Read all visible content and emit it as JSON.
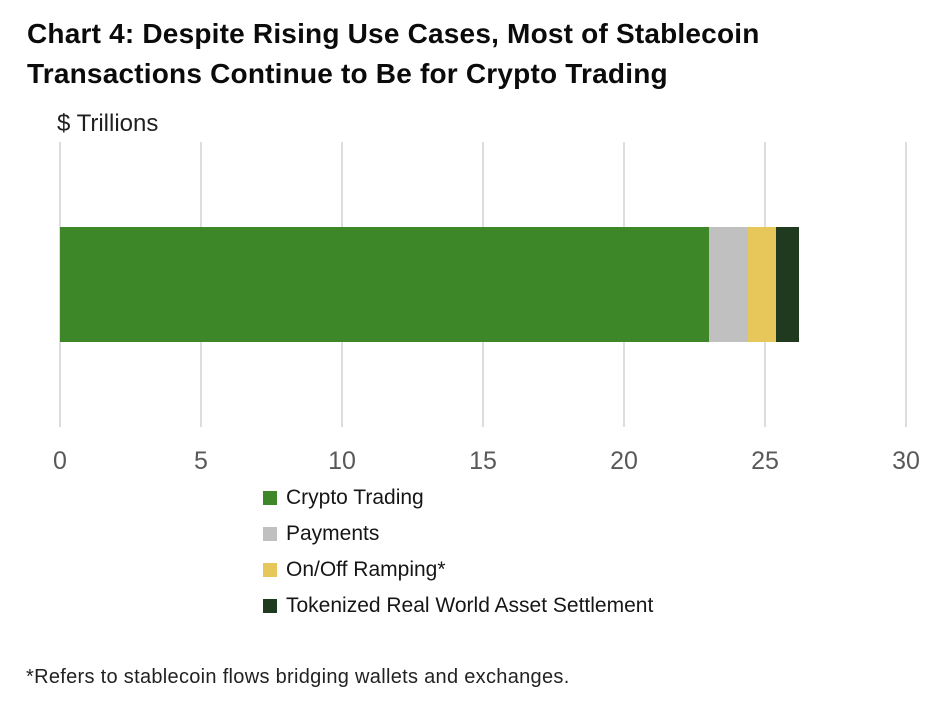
{
  "title": "Chart 4: Despite Rising Use Cases, Most of Stablecoin Transactions Continue to Be for Crypto Trading",
  "footnote": "*Refers to stablecoin flows bridging wallets and exchanges.",
  "colors": {
    "background": "#ffffff",
    "title_text": "#0b0b0b",
    "tick_text": "#595959",
    "gridline": "#dddddd"
  },
  "chart_data": {
    "type": "bar",
    "orientation": "horizontal",
    "stacked": true,
    "title": "Chart 4: Despite Rising Use Cases, Most of Stablecoin Transactions Continue to Be for Crypto Trading",
    "unit_label": "$ Trillions",
    "xlabel": "",
    "ylabel": "$ Trillions",
    "xlim": [
      0,
      30
    ],
    "x_ticks": [
      0,
      5,
      10,
      15,
      20,
      25,
      30
    ],
    "grid": "vertical",
    "legend_position": "bottom-left",
    "series": [
      {
        "name": "Crypto Trading",
        "value": 23.0,
        "color": "#3e8728"
      },
      {
        "name": "Payments",
        "value": 1.4,
        "color": "#c0c0c0"
      },
      {
        "name": "On/Off Ramping*",
        "value": 1.0,
        "color": "#e7c75a"
      },
      {
        "name": "Tokenized Real World Asset Settlement",
        "value": 0.8,
        "color": "#203a20"
      }
    ],
    "total": 26.2,
    "footnote": "*Refers to stablecoin flows bridging wallets and exchanges."
  }
}
